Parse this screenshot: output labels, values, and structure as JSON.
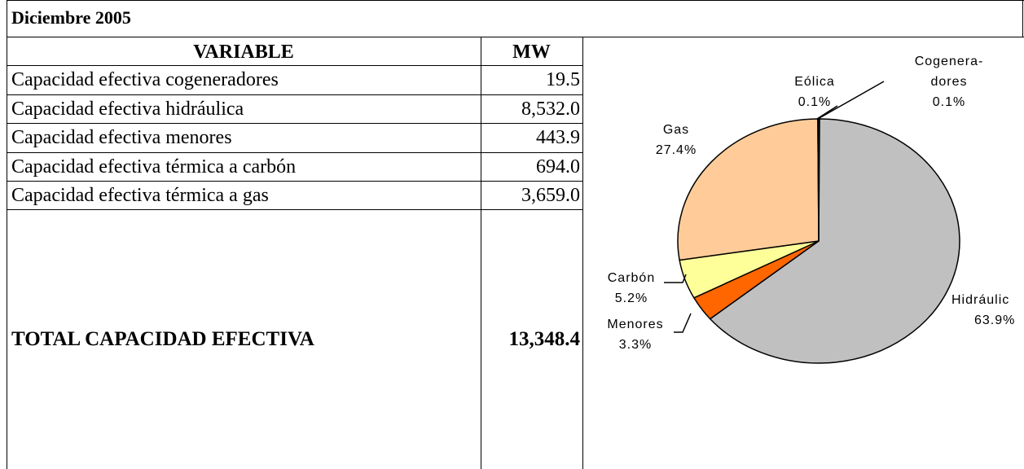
{
  "title": "Diciembre 2005",
  "table": {
    "header": [
      "VARIABLE",
      "MW"
    ],
    "rows": [
      [
        "Capacidad efectiva cogeneradores",
        "19.5"
      ],
      [
        "Capacidad efectiva hidráulica",
        "8,532.0"
      ],
      [
        "Capacidad efectiva menores",
        "443.9"
      ],
      [
        "Capacidad efectiva térmica a carbón",
        "694.0"
      ],
      [
        "Capacidad efectiva térmica a gas",
        "3,659.0"
      ]
    ],
    "total": [
      "TOTAL CAPACIDAD EFECTIVA",
      "13,348.4"
    ]
  },
  "chart_data": {
    "type": "pie",
    "categories": [
      [
        "Cogenera-",
        "dores"
      ],
      [
        "Hidráulic"
      ],
      [
        "Menores"
      ],
      [
        "Carbón"
      ],
      [
        "Gas"
      ],
      [
        "Eólica"
      ]
    ],
    "values": [
      0.1,
      63.9,
      3.3,
      5.2,
      27.4,
      0.1
    ],
    "value_labels": [
      "0.1%",
      "63.9%",
      "3.3%",
      "5.2%",
      "27.4%",
      "0.1%"
    ],
    "colors": [
      "#333333",
      "#c0c0c0",
      "#ff6600",
      "#ffff99",
      "#ffcc99",
      "#666666"
    ]
  }
}
